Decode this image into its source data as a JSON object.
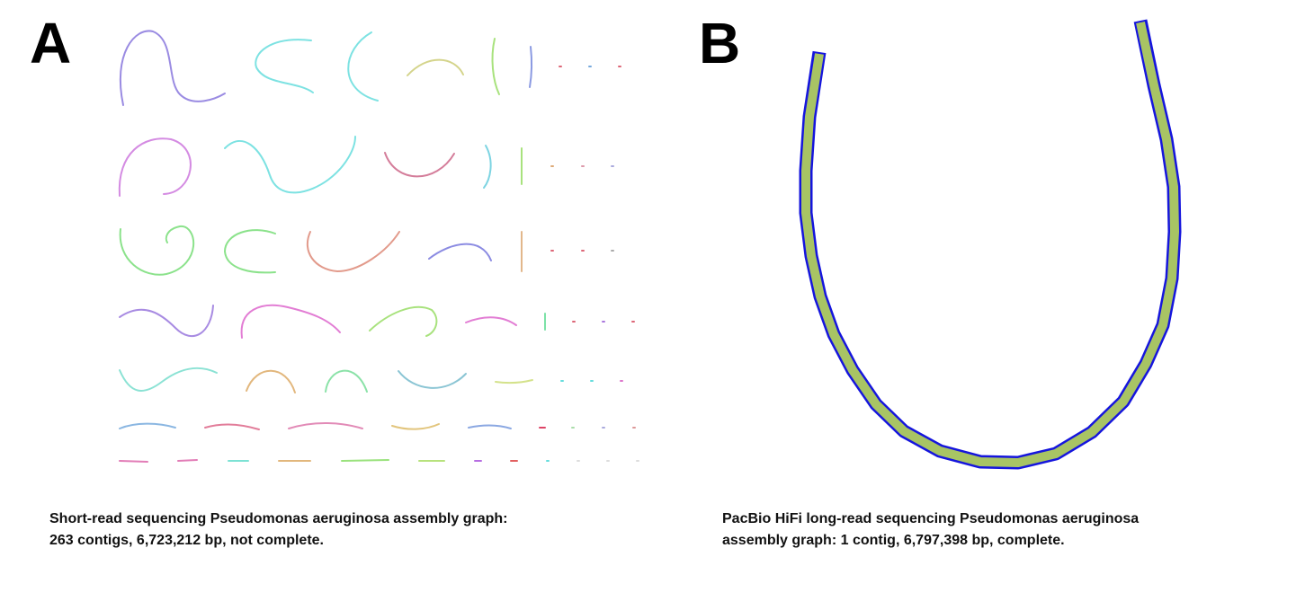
{
  "panels": [
    {
      "label": "A",
      "caption_lines": [
        "Short-read sequencing Pseudomonas aeruginosa assembly graph:",
        "263 contigs, 6,723,212 bp, not complete."
      ]
    },
    {
      "label": "B",
      "caption_lines": [
        "PacBio HiFi long-read sequencing Pseudomonas aeruginosa",
        "assembly graph: 1 contig, 6,797,398 bp, complete."
      ]
    }
  ]
}
